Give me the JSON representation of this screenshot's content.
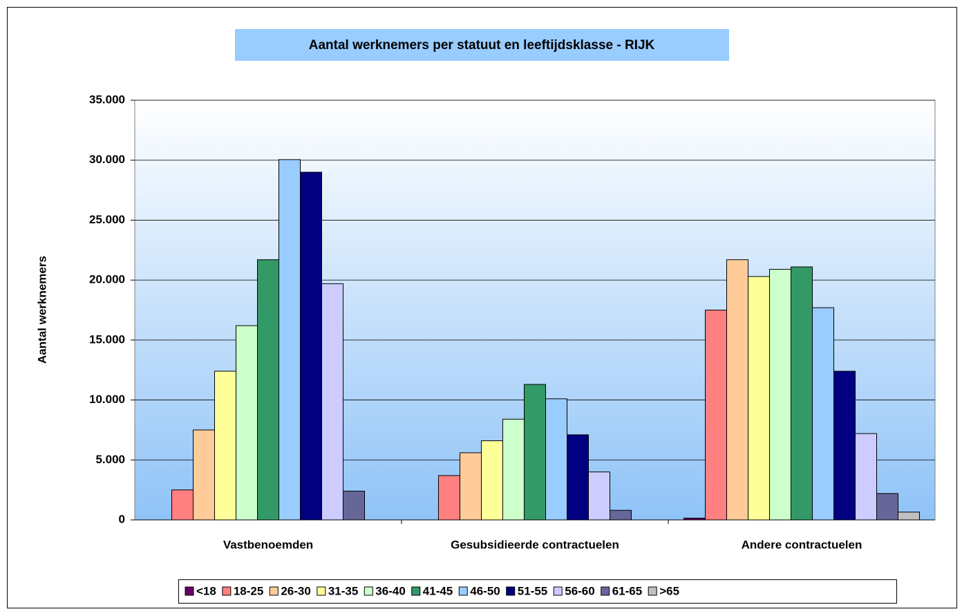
{
  "chart_data": {
    "type": "bar",
    "title": "Aantal werknemers per statuut en leeftijdsklasse - RIJK",
    "ylabel": "Aantal werknemers",
    "categories": [
      "Vastbenoemden",
      "Gesubsidieerde contractuelen",
      "Andere contractuelen"
    ],
    "ylim": [
      0,
      35000
    ],
    "yticks": [
      0,
      {
        "value": 5000,
        "label": "5.000"
      },
      {
        "value": 10000,
        "label": "10.000"
      },
      {
        "value": 15000,
        "label": "15.000"
      },
      {
        "value": 20000,
        "label": "20.000"
      },
      {
        "value": 25000,
        "label": "25.000"
      },
      {
        "value": 30000,
        "label": "30.000"
      },
      {
        "value": 35000,
        "label": "35.000"
      }
    ],
    "grid": true,
    "legend": "bottom",
    "series": [
      {
        "name": "<18",
        "color": "#660066",
        "values": [
          0,
          0,
          150
        ]
      },
      {
        "name": "18-25",
        "color": "#FF8080",
        "values": [
          2500,
          3700,
          17500
        ]
      },
      {
        "name": "26-30",
        "color": "#FFCC99",
        "values": [
          7500,
          5600,
          21700
        ]
      },
      {
        "name": "31-35",
        "color": "#FFFF99",
        "values": [
          12400,
          6600,
          20300
        ]
      },
      {
        "name": "36-40",
        "color": "#CCFFCC",
        "values": [
          16200,
          8400,
          20900
        ]
      },
      {
        "name": "41-45",
        "color": "#339966",
        "values": [
          21700,
          11300,
          21100
        ]
      },
      {
        "name": "46-50",
        "color": "#99CCFF",
        "values": [
          30050,
          10100,
          17700
        ]
      },
      {
        "name": "51-55",
        "color": "#000080",
        "values": [
          29000,
          7100,
          12400
        ]
      },
      {
        "name": "56-60",
        "color": "#CCCCFF",
        "values": [
          19700,
          4000,
          7200
        ]
      },
      {
        "name": "61-65",
        "color": "#666699",
        "values": [
          2400,
          800,
          2200
        ]
      },
      {
        "name": ">65",
        "color": "#C0C0C0",
        "values": [
          0,
          0,
          650
        ]
      }
    ]
  }
}
